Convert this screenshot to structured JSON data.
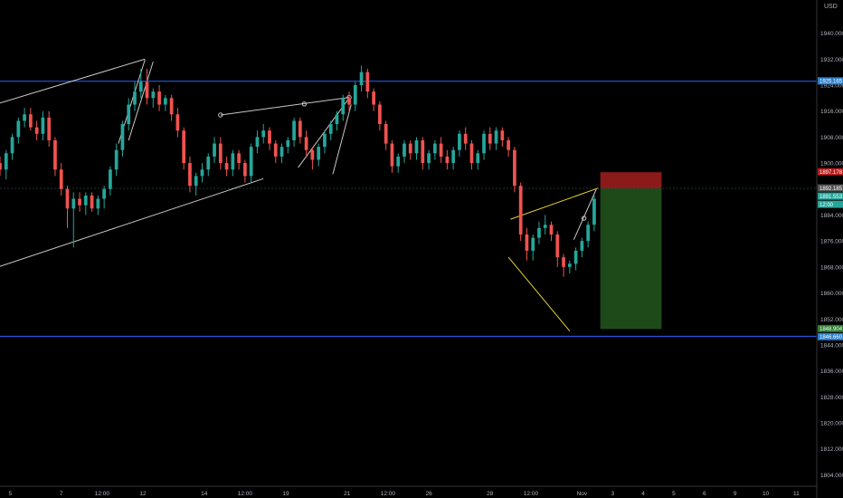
{
  "header": {
    "currency": "USD"
  },
  "colors": {
    "background": "#000000",
    "up": "#26a69a",
    "down": "#ef5350",
    "axis_text": "#b2b5be",
    "level_line": "#2962ff",
    "pattern_white": "#c8c8c8",
    "pattern_yellow": "#e6d22a",
    "stop_zone": "#8b1a1a",
    "target_zone": "#1e4a1a",
    "price_label": "#2a7fcf"
  },
  "chart_data": {
    "type": "candlestick",
    "title": "",
    "xlabel": "",
    "ylabel": "",
    "ylim": [
      1800.5,
      1950.2
    ],
    "grid": false,
    "y_ticks": [
      1940,
      1932,
      1924,
      1916,
      1908,
      1900,
      1884,
      1876,
      1868,
      1860,
      1852,
      1844,
      1836,
      1828,
      1820,
      1812,
      1804
    ],
    "y_tick_labels": [
      "1940.000",
      "1932.000",
      "1924.000",
      "1916.000",
      "1908.000",
      "1900.000",
      "1884.000",
      "1876.000",
      "1868.000",
      "1860.000",
      "1852.000",
      "1844.000",
      "1836.000",
      "1828.000",
      "1820.000",
      "1812.000",
      "1804.000"
    ],
    "x_ticks": [
      "5",
      "7",
      "12:00",
      "12",
      "14",
      "12:00",
      "19",
      "21",
      "12:00",
      "26",
      "28",
      "12:00",
      "Nov",
      "3",
      "4",
      "5",
      "6",
      "9",
      "10",
      "11"
    ],
    "x_tick_positions": [
      0.5,
      3,
      5,
      7,
      10,
      12,
      14,
      17,
      19,
      21,
      24,
      26,
      28.5,
      30,
      31.5,
      33,
      34.5,
      36,
      37.5,
      39
    ],
    "x_range": [
      0,
      40
    ],
    "price_labels": [
      {
        "label": "1925.165",
        "value": 1925.165,
        "kind": "level"
      },
      {
        "label": "1897.178",
        "value": 1897.178,
        "kind": "stop"
      },
      {
        "label": "1892.185",
        "value": 1892.185,
        "kind": "entry"
      },
      {
        "label": "1891.553",
        "value": 1891.553,
        "kind": "last"
      },
      {
        "label": "12:00",
        "value": 1887.9,
        "kind": "time"
      },
      {
        "label": "1848.904",
        "value": 1848.904,
        "kind": "target"
      },
      {
        "label": "1846.660",
        "value": 1846.66,
        "kind": "level"
      }
    ],
    "horizontal_levels": [
      1925.165,
      1846.66
    ],
    "entry_price": 1892.185,
    "position": {
      "x_start": 29.4,
      "x_end": 32.4,
      "stop": 1897.178,
      "entry": 1892.185,
      "target": 1848.904
    },
    "trend_lines": [
      {
        "color": "white",
        "points": [
          [
            0,
            1918.5
          ],
          [
            7.1,
            1932.0
          ]
        ]
      },
      {
        "color": "white",
        "points": [
          [
            0,
            1868.2
          ],
          [
            12.9,
            1895.2
          ]
        ]
      },
      {
        "color": "white",
        "points": [
          [
            10.8,
            1914.8
          ],
          [
            17.1,
            1920.2
          ]
        ]
      },
      {
        "color": "white",
        "points": [
          [
            5.8,
            1906.0
          ],
          [
            7.1,
            1931.8
          ]
        ]
      },
      {
        "color": "white",
        "points": [
          [
            6.3,
            1907.0
          ],
          [
            7.5,
            1931.2
          ]
        ]
      },
      {
        "color": "white",
        "points": [
          [
            14.6,
            1898.6
          ],
          [
            17.1,
            1920.0
          ]
        ]
      },
      {
        "color": "white",
        "points": [
          [
            16.3,
            1896.6
          ],
          [
            17.2,
            1918.0
          ]
        ]
      },
      {
        "color": "yellow",
        "points": [
          [
            25.0,
            1882.7
          ],
          [
            29.3,
            1892.3
          ]
        ]
      },
      {
        "color": "yellow",
        "points": [
          [
            24.9,
            1871.0
          ],
          [
            27.9,
            1848.3
          ]
        ]
      },
      {
        "color": "white",
        "points": [
          [
            28.1,
            1876.4
          ],
          [
            29.2,
            1891.9
          ]
        ]
      }
    ],
    "pivot_markers": [
      [
        10.8,
        1914.8
      ],
      [
        14.9,
        1918.2
      ],
      [
        17.1,
        1920.2
      ],
      [
        28.6,
        1883.0
      ]
    ],
    "series": [
      {
        "x": [
          0,
          0.3,
          0.6,
          0.9,
          1.2,
          1.5,
          1.8,
          2.1,
          2.4,
          2.7,
          3.0,
          3.3,
          3.6,
          3.9,
          4.2,
          4.5,
          4.8,
          5.1,
          5.4,
          5.7,
          6.0,
          6.3,
          6.6,
          6.9,
          7.2,
          7.5,
          7.8,
          8.1,
          8.4,
          8.7,
          9.0,
          9.3,
          9.6,
          9.9,
          10.2,
          10.5,
          10.8,
          11.1,
          11.4,
          11.7,
          12.0,
          12.3,
          12.6,
          12.9,
          13.2,
          13.5,
          13.8,
          14.1,
          14.4,
          14.7,
          15.0,
          15.3,
          15.6,
          15.9,
          16.2,
          16.5,
          16.8,
          17.1,
          17.4,
          17.7,
          18.0,
          18.3,
          18.6,
          18.9,
          19.2,
          19.5,
          19.8,
          20.1,
          20.4,
          20.7,
          21.0,
          21.3,
          21.6,
          21.9,
          22.2,
          22.5,
          22.8,
          23.1,
          23.4,
          23.7,
          24.0,
          24.3,
          24.6,
          24.9,
          25.2,
          25.5,
          25.8,
          26.1,
          26.4,
          26.7,
          27.0,
          27.3,
          27.6,
          27.9,
          28.2,
          28.5,
          28.8,
          29.1
        ],
        "open": [
          1900,
          1898,
          1903,
          1908,
          1913,
          1915,
          1911,
          1909,
          1914,
          1907,
          1898,
          1892,
          1886,
          1889,
          1887,
          1890,
          1886,
          1889,
          1892,
          1898,
          1904,
          1912,
          1918,
          1922,
          1925,
          1920,
          1922,
          1918,
          1920,
          1915,
          1910,
          1900,
          1893,
          1896,
          1898,
          1902,
          1906,
          1900,
          1898,
          1903,
          1900,
          1896,
          1905,
          1908,
          1910,
          1906,
          1902,
          1905,
          1907,
          1913,
          1908,
          1904,
          1901,
          1905,
          1909,
          1912,
          1915,
          1920,
          1918,
          1924,
          1928,
          1922,
          1918,
          1912,
          1906,
          1899,
          1902,
          1906,
          1903,
          1907,
          1900,
          1903,
          1906,
          1902,
          1900,
          1904,
          1909,
          1906,
          1900,
          1903,
          1909,
          1906,
          1910,
          1907,
          1904,
          1893,
          1878,
          1873,
          1877,
          1880,
          1881,
          1878,
          1871,
          1868,
          1869,
          1873,
          1876,
          1881
        ],
        "high": [
          1902,
          1904,
          1909,
          1914,
          1917,
          1917,
          1913,
          1916,
          1916,
          1908,
          1900,
          1893,
          1891,
          1891,
          1891,
          1891,
          1890,
          1893,
          1899,
          1906,
          1913,
          1920,
          1925,
          1929,
          1929,
          1923,
          1924,
          1921,
          1921,
          1917,
          1911,
          1902,
          1897,
          1900,
          1903,
          1908,
          1908,
          1902,
          1904,
          1904,
          1901,
          1906,
          1910,
          1912,
          1911,
          1907,
          1906,
          1908,
          1914,
          1914,
          1910,
          1905,
          1906,
          1910,
          1913,
          1916,
          1921,
          1922,
          1925,
          1930,
          1929,
          1923,
          1919,
          1913,
          1907,
          1903,
          1907,
          1907,
          1908,
          1908,
          1904,
          1907,
          1908,
          1904,
          1905,
          1910,
          1911,
          1907,
          1904,
          1910,
          1911,
          1911,
          1911,
          1908,
          1905,
          1894,
          1880,
          1878,
          1882,
          1884,
          1882,
          1879,
          1872,
          1870,
          1874,
          1877,
          1882,
          1890
        ],
        "low": [
          1896,
          1895,
          1901,
          1906,
          1911,
          1910,
          1907,
          1907,
          1905,
          1896,
          1890,
          1880,
          1874,
          1885,
          1884,
          1885,
          1884,
          1886,
          1890,
          1896,
          1902,
          1910,
          1916,
          1920,
          1918,
          1917,
          1916,
          1916,
          1913,
          1908,
          1898,
          1891,
          1890,
          1894,
          1896,
          1900,
          1898,
          1896,
          1896,
          1898,
          1894,
          1894,
          1903,
          1906,
          1904,
          1900,
          1900,
          1903,
          1905,
          1906,
          1902,
          1898,
          1899,
          1903,
          1907,
          1910,
          1913,
          1916,
          1916,
          1922,
          1920,
          1916,
          1910,
          1904,
          1897,
          1897,
          1900,
          1901,
          1901,
          1898,
          1898,
          1901,
          1900,
          1898,
          1898,
          1902,
          1904,
          1898,
          1898,
          1901,
          1904,
          1904,
          1905,
          1902,
          1891,
          1876,
          1870,
          1870,
          1875,
          1878,
          1876,
          1868,
          1865,
          1866,
          1867,
          1871,
          1874,
          1879
        ],
        "close": [
          1898,
          1903,
          1908,
          1913,
          1915,
          1911,
          1909,
          1914,
          1907,
          1898,
          1892,
          1886,
          1889,
          1887,
          1890,
          1886,
          1889,
          1892,
          1898,
          1904,
          1912,
          1918,
          1922,
          1925,
          1920,
          1922,
          1918,
          1920,
          1915,
          1910,
          1900,
          1893,
          1896,
          1898,
          1902,
          1906,
          1900,
          1898,
          1903,
          1900,
          1896,
          1905,
          1908,
          1910,
          1906,
          1902,
          1905,
          1907,
          1913,
          1908,
          1904,
          1901,
          1905,
          1909,
          1912,
          1915,
          1920,
          1918,
          1924,
          1928,
          1922,
          1918,
          1912,
          1906,
          1899,
          1902,
          1906,
          1903,
          1907,
          1900,
          1903,
          1906,
          1902,
          1900,
          1904,
          1909,
          1906,
          1900,
          1903,
          1909,
          1906,
          1910,
          1907,
          1904,
          1893,
          1878,
          1873,
          1877,
          1880,
          1881,
          1878,
          1871,
          1868,
          1869,
          1873,
          1876,
          1881,
          1889
        ]
      }
    ]
  }
}
